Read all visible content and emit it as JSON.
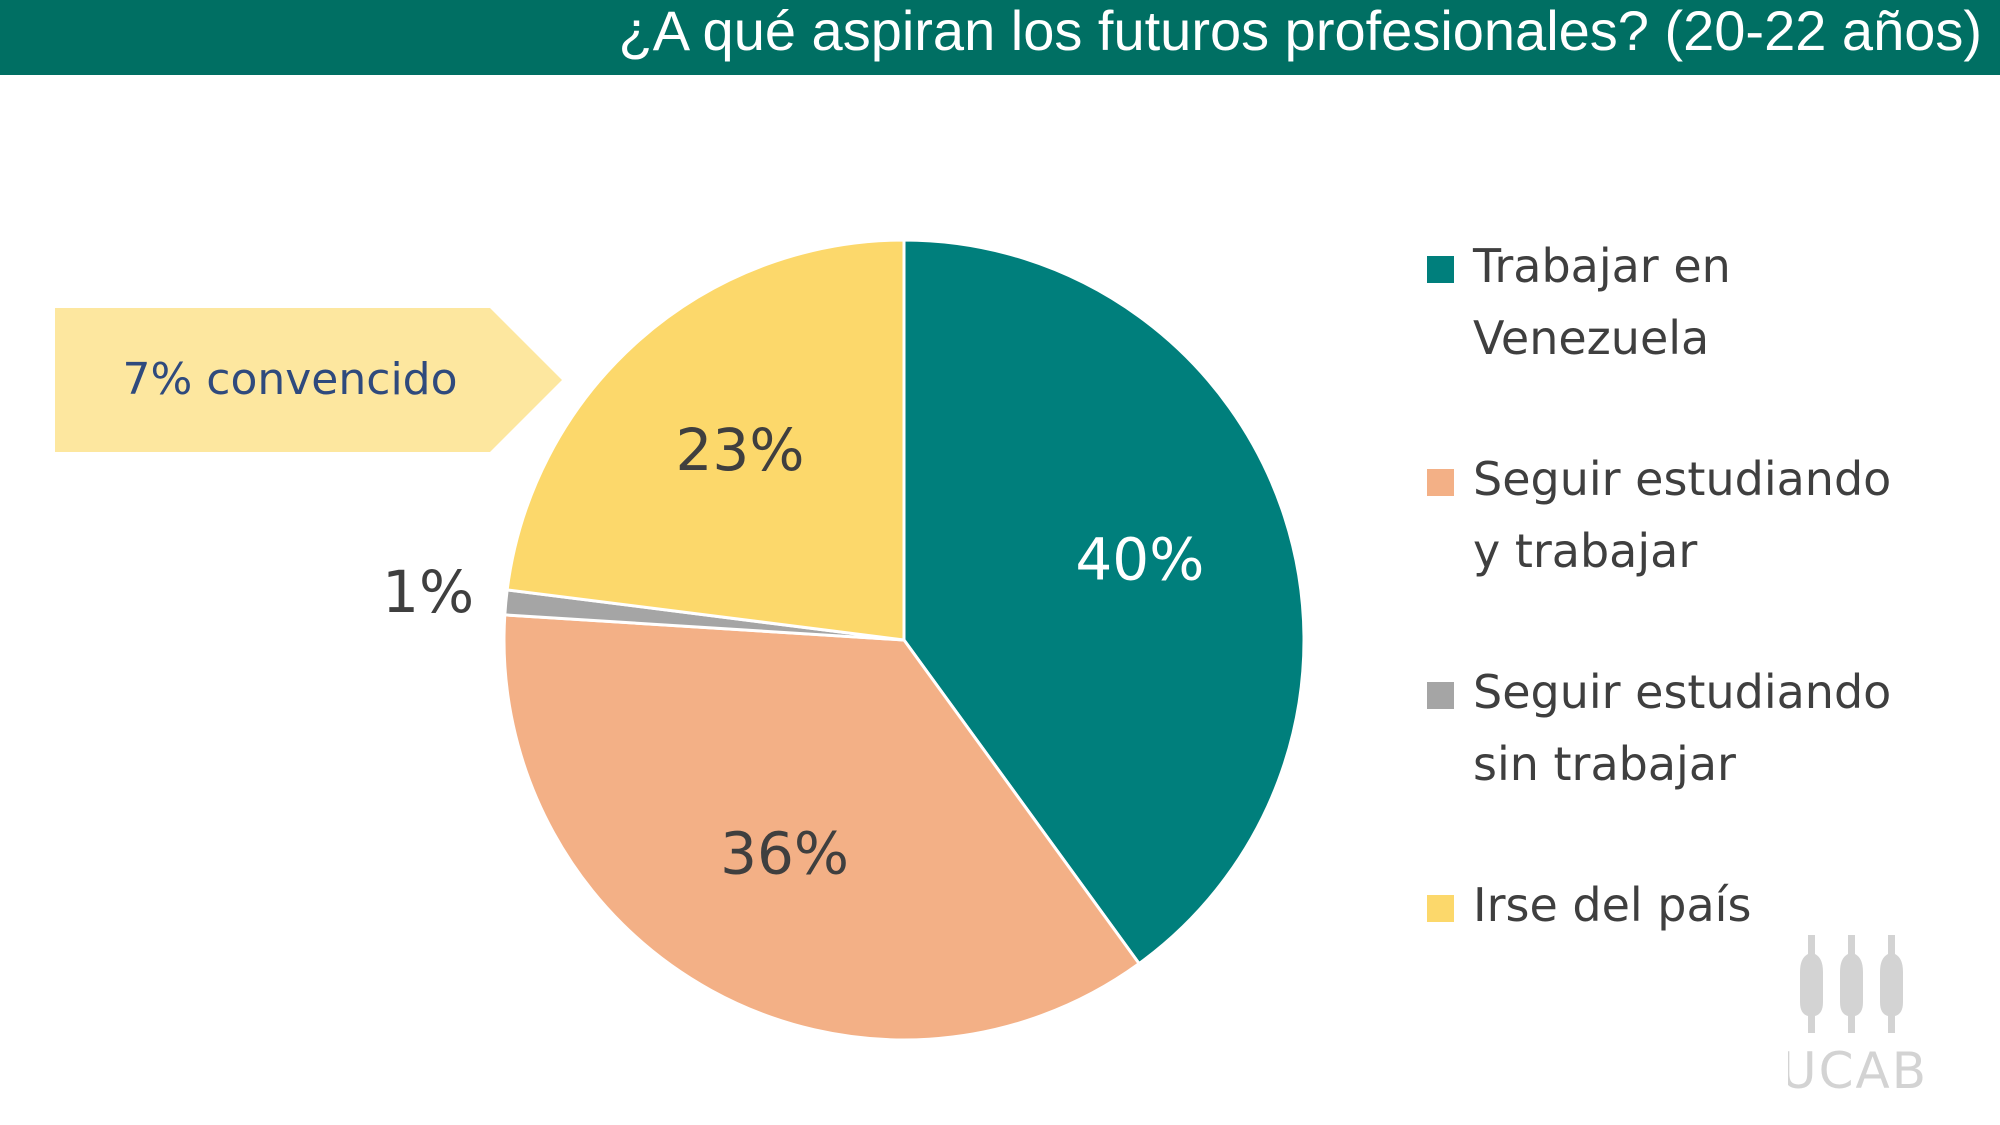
{
  "header": {
    "title": "¿A qué aspiran los futuros profesionales? (20-22 años)"
  },
  "callout": {
    "text": "7% convencido"
  },
  "logo": {
    "text": "UCAB"
  },
  "colors": {
    "header_bg": "#006f63",
    "teal": "#007f7c",
    "salmon": "#f3b086",
    "gray": "#a5a5a5",
    "yellow": "#fcd86b",
    "callout_bg": "#fde79f"
  },
  "chart_data": {
    "type": "pie",
    "title": "¿A qué aspiran los futuros profesionales? (20-22 años)",
    "categories": [
      "Trabajar en Venezuela",
      "Seguir estudiando y trabajar",
      "Seguir estudiando sin trabajar",
      "Irse del país"
    ],
    "values": [
      40,
      36,
      1,
      23
    ],
    "labels": [
      "40%",
      "36%",
      "1%",
      "23%"
    ],
    "colors": [
      "#007f7c",
      "#f3b086",
      "#a5a5a5",
      "#fcd86b"
    ],
    "legend_position": "right",
    "annotations": [
      "7% convencido"
    ]
  }
}
